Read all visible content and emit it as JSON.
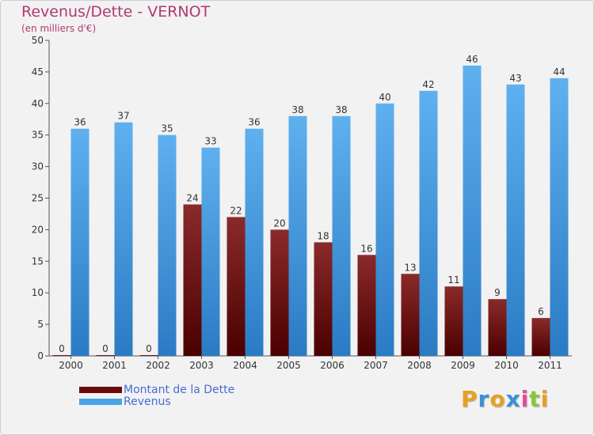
{
  "title": "Revenus/Dette - VERNOT",
  "subtitle": "(en milliers d'€)",
  "logo": {
    "letters": [
      "P",
      "r",
      "o",
      "x",
      "i",
      "t",
      "i"
    ],
    "colors": [
      "#e8a020",
      "#3a8fd8",
      "#e8a020",
      "#3a8fd8",
      "#e84a9a",
      "#8bc43a",
      "#e8a020"
    ]
  },
  "legend": [
    {
      "label": "Montant de la Dette",
      "color": "#6b0a0a"
    },
    {
      "label": "Revenus",
      "color": "#4aa3e6"
    }
  ],
  "chart_data": {
    "type": "bar",
    "categories": [
      "2000",
      "2001",
      "2002",
      "2003",
      "2004",
      "2005",
      "2006",
      "2007",
      "2008",
      "2009",
      "2010",
      "2011"
    ],
    "series": [
      {
        "name": "Montant de la Dette",
        "color": "#6b0a0a",
        "values": [
          0,
          0,
          0,
          24,
          22,
          20,
          18,
          16,
          13,
          11,
          9,
          6
        ]
      },
      {
        "name": "Revenus",
        "color": "#4aa3e6",
        "values": [
          36,
          37,
          35,
          33,
          36,
          38,
          38,
          40,
          42,
          46,
          43,
          44
        ]
      }
    ],
    "ylim": [
      0,
      50
    ],
    "yticks": [
      0,
      5,
      10,
      15,
      20,
      25,
      30,
      35,
      40,
      45,
      50
    ],
    "grid": false,
    "legend_position": "bottom-left"
  }
}
